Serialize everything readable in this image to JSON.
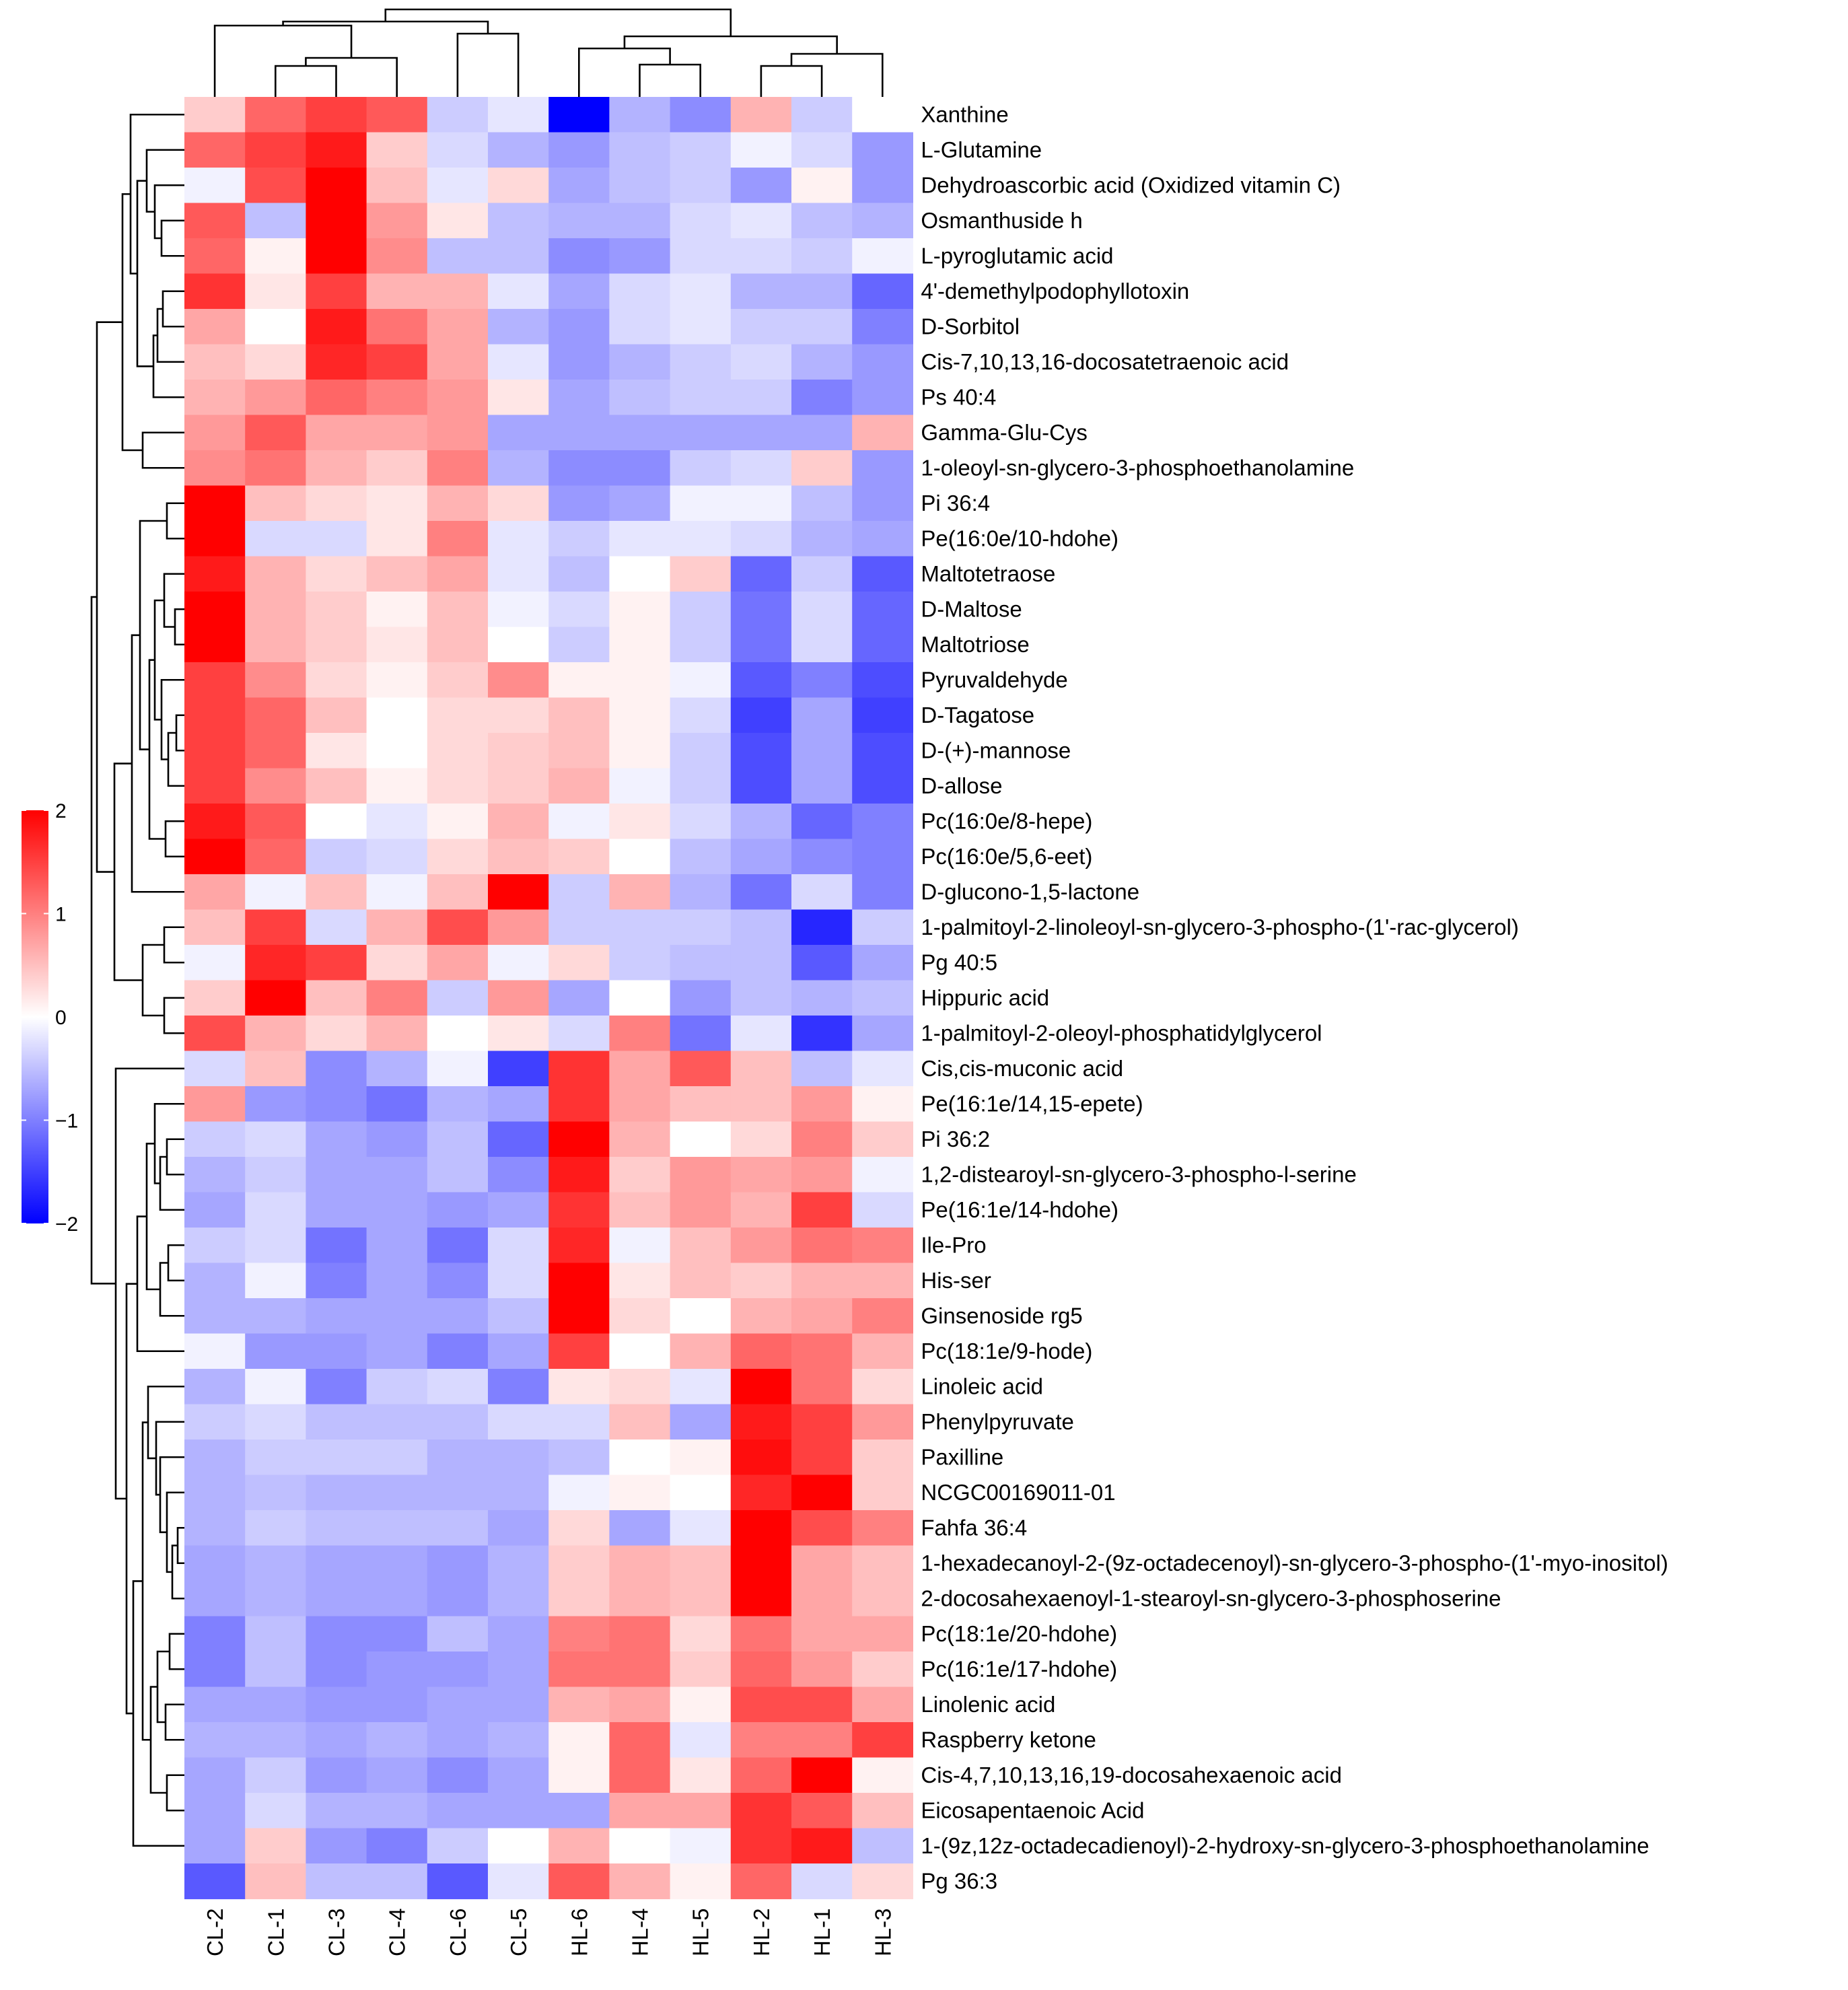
{
  "chart_data": {
    "type": "heatmap",
    "columns": [
      "CL-2",
      "CL-1",
      "CL-3",
      "CL-4",
      "CL-6",
      "CL-5",
      "HL-6",
      "HL-4",
      "HL-5",
      "HL-2",
      "HL-1",
      "HL-3"
    ],
    "rows": [
      {
        "label": "Xanthine",
        "values": [
          0.4,
          1.2,
          1.5,
          1.3,
          -0.4,
          -0.2,
          -2.0,
          -0.6,
          -0.9,
          0.6,
          -0.4,
          0.0
        ]
      },
      {
        "label": "L-Glutamine",
        "values": [
          1.2,
          1.5,
          1.8,
          0.4,
          -0.3,
          -0.6,
          -0.8,
          -0.5,
          -0.4,
          -0.1,
          -0.3,
          -0.8
        ]
      },
      {
        "label": "Dehydroascorbic acid (Oxidized vitamin C)",
        "values": [
          -0.1,
          1.4,
          2.0,
          0.5,
          -0.2,
          0.3,
          -0.7,
          -0.5,
          -0.4,
          -0.8,
          0.1,
          -0.8
        ]
      },
      {
        "label": "Osmanthuside h",
        "values": [
          1.3,
          -0.5,
          2.0,
          0.8,
          0.2,
          -0.5,
          -0.6,
          -0.6,
          -0.3,
          -0.2,
          -0.5,
          -0.6
        ]
      },
      {
        "label": "L-pyroglutamic acid",
        "values": [
          1.2,
          0.1,
          2.0,
          0.9,
          -0.5,
          -0.5,
          -0.9,
          -0.8,
          -0.3,
          -0.3,
          -0.4,
          -0.1
        ]
      },
      {
        "label": "4'-demethylpodophyllotoxin",
        "values": [
          1.6,
          0.2,
          1.5,
          0.6,
          0.6,
          -0.2,
          -0.7,
          -0.3,
          -0.2,
          -0.6,
          -0.6,
          -1.2
        ]
      },
      {
        "label": "D-Sorbitol",
        "values": [
          0.7,
          0.0,
          1.8,
          1.1,
          0.7,
          -0.6,
          -0.8,
          -0.3,
          -0.2,
          -0.4,
          -0.4,
          -1.0
        ]
      },
      {
        "label": "Cis-7,10,13,16-docosatetraenoic acid",
        "values": [
          0.5,
          0.3,
          1.7,
          1.5,
          0.7,
          -0.2,
          -0.8,
          -0.6,
          -0.4,
          -0.3,
          -0.6,
          -0.8
        ]
      },
      {
        "label": "Ps 40:4",
        "values": [
          0.6,
          0.8,
          1.2,
          1.0,
          0.8,
          0.2,
          -0.7,
          -0.5,
          -0.4,
          -0.4,
          -1.0,
          -0.8
        ]
      },
      {
        "label": "Gamma-Glu-Cys",
        "values": [
          0.8,
          1.3,
          0.7,
          0.7,
          0.8,
          -0.7,
          -0.7,
          -0.7,
          -0.7,
          -0.7,
          -0.7,
          0.6
        ]
      },
      {
        "label": "1-oleoyl-sn-glycero-3-phosphoethanolamine",
        "values": [
          0.9,
          1.1,
          0.6,
          0.4,
          1.0,
          -0.6,
          -0.9,
          -0.9,
          -0.4,
          -0.3,
          0.4,
          -0.8
        ]
      },
      {
        "label": "Pi 36:4",
        "values": [
          2.0,
          0.5,
          0.3,
          0.2,
          0.6,
          0.3,
          -0.8,
          -0.7,
          -0.1,
          -0.1,
          -0.5,
          -0.8
        ]
      },
      {
        "label": "Pe(16:0e/10-hdohe)",
        "values": [
          2.0,
          -0.3,
          -0.3,
          0.2,
          1.0,
          -0.2,
          -0.4,
          -0.2,
          -0.2,
          -0.3,
          -0.6,
          -0.7
        ]
      },
      {
        "label": "Maltotetraose",
        "values": [
          1.8,
          0.6,
          0.3,
          0.5,
          0.7,
          -0.2,
          -0.5,
          0.0,
          0.4,
          -1.2,
          -0.4,
          -1.3
        ]
      },
      {
        "label": "D-Maltose",
        "values": [
          2.0,
          0.6,
          0.4,
          0.1,
          0.5,
          -0.1,
          -0.3,
          0.1,
          -0.4,
          -1.1,
          -0.3,
          -1.2
        ]
      },
      {
        "label": "Maltotriose",
        "values": [
          2.0,
          0.6,
          0.4,
          0.2,
          0.5,
          0.0,
          -0.4,
          0.1,
          -0.4,
          -1.1,
          -0.3,
          -1.2
        ]
      },
      {
        "label": "Pyruvaldehyde",
        "values": [
          1.5,
          0.9,
          0.3,
          0.1,
          0.4,
          0.9,
          0.1,
          0.1,
          -0.1,
          -1.3,
          -1.0,
          -1.4
        ]
      },
      {
        "label": "D-Tagatose",
        "values": [
          1.5,
          1.2,
          0.5,
          0.0,
          0.3,
          0.3,
          0.5,
          0.1,
          -0.3,
          -1.5,
          -0.7,
          -1.5
        ]
      },
      {
        "label": "D-(+)-mannose",
        "values": [
          1.5,
          1.2,
          0.2,
          0.0,
          0.3,
          0.4,
          0.5,
          0.1,
          -0.4,
          -1.4,
          -0.7,
          -1.4
        ]
      },
      {
        "label": "D-allose",
        "values": [
          1.5,
          0.9,
          0.5,
          0.1,
          0.3,
          0.4,
          0.6,
          -0.1,
          -0.4,
          -1.4,
          -0.7,
          -1.4
        ]
      },
      {
        "label": "Pc(16:0e/8-hepe)",
        "values": [
          1.8,
          1.3,
          0.0,
          -0.2,
          0.1,
          0.6,
          -0.1,
          0.2,
          -0.3,
          -0.6,
          -1.2,
          -1.0
        ]
      },
      {
        "label": "Pc(16:0e/5,6-eet)",
        "values": [
          2.0,
          1.2,
          -0.4,
          -0.3,
          0.3,
          0.5,
          0.4,
          0.0,
          -0.5,
          -0.7,
          -0.9,
          -1.0
        ]
      },
      {
        "label": "D-glucono-1,5-lactone",
        "values": [
          0.7,
          -0.1,
          0.5,
          -0.1,
          0.5,
          2.0,
          -0.4,
          0.6,
          -0.6,
          -1.1,
          -0.3,
          -1.0
        ]
      },
      {
        "label": "1-palmitoyl-2-linoleoyl-sn-glycero-3-phospho-(1'-rac-glycerol)",
        "values": [
          0.5,
          1.5,
          -0.3,
          0.6,
          1.4,
          0.8,
          -0.4,
          -0.4,
          -0.4,
          -0.5,
          -1.7,
          -0.4
        ]
      },
      {
        "label": "Pg 40:5",
        "values": [
          -0.1,
          1.7,
          1.5,
          0.3,
          0.7,
          -0.1,
          0.3,
          -0.4,
          -0.5,
          -0.5,
          -1.3,
          -0.7
        ]
      },
      {
        "label": "Hippuric acid",
        "values": [
          0.4,
          2.0,
          0.5,
          1.0,
          -0.4,
          0.8,
          -0.7,
          0.0,
          -0.8,
          -0.5,
          -0.6,
          -0.5
        ]
      },
      {
        "label": "1-palmitoyl-2-oleoyl-phosphatidylglycerol",
        "values": [
          1.4,
          0.6,
          0.3,
          0.6,
          0.0,
          0.2,
          -0.3,
          1.0,
          -1.1,
          -0.2,
          -1.6,
          -0.7
        ]
      },
      {
        "label": "Cis,cis-muconic acid",
        "values": [
          -0.3,
          0.5,
          -0.9,
          -0.6,
          -0.1,
          -1.5,
          1.6,
          0.7,
          1.3,
          0.5,
          -0.5,
          -0.2
        ]
      },
      {
        "label": "Pe(16:1e/14,15-epete)",
        "values": [
          0.8,
          -0.8,
          -0.9,
          -1.1,
          -0.6,
          -0.7,
          1.6,
          0.7,
          0.5,
          0.5,
          0.8,
          0.1
        ]
      },
      {
        "label": "Pi 36:2",
        "values": [
          -0.4,
          -0.3,
          -0.7,
          -0.8,
          -0.5,
          -1.2,
          2.0,
          0.6,
          0.0,
          0.3,
          1.0,
          0.4
        ]
      },
      {
        "label": "1,2-distearoyl-sn-glycero-3-phospho-l-serine",
        "values": [
          -0.6,
          -0.4,
          -0.7,
          -0.7,
          -0.5,
          -0.9,
          1.8,
          0.4,
          0.8,
          0.7,
          0.8,
          -0.1
        ]
      },
      {
        "label": "Pe(16:1e/14-hdohe)",
        "values": [
          -0.7,
          -0.3,
          -0.7,
          -0.7,
          -0.8,
          -0.7,
          1.6,
          0.5,
          0.8,
          0.6,
          1.5,
          -0.3
        ]
      },
      {
        "label": "Ile-Pro",
        "values": [
          -0.4,
          -0.3,
          -1.1,
          -0.7,
          -1.1,
          -0.3,
          1.7,
          -0.1,
          0.5,
          0.8,
          1.1,
          1.0
        ]
      },
      {
        "label": "His-ser",
        "values": [
          -0.6,
          -0.1,
          -1.0,
          -0.7,
          -0.9,
          -0.3,
          2.0,
          0.2,
          0.5,
          0.4,
          0.6,
          0.6
        ]
      },
      {
        "label": "Ginsenoside rg5",
        "values": [
          -0.6,
          -0.6,
          -0.7,
          -0.7,
          -0.7,
          -0.5,
          2.0,
          0.3,
          0.0,
          0.6,
          0.7,
          1.0
        ]
      },
      {
        "label": "Pc(18:1e/9-hode)",
        "values": [
          -0.1,
          -0.8,
          -0.8,
          -0.7,
          -1.0,
          -0.7,
          1.5,
          0.0,
          0.6,
          1.2,
          1.1,
          0.6
        ]
      },
      {
        "label": "Linoleic acid",
        "values": [
          -0.6,
          -0.1,
          -1.0,
          -0.4,
          -0.3,
          -1.0,
          0.2,
          0.3,
          -0.2,
          2.0,
          1.1,
          0.3
        ]
      },
      {
        "label": "Phenylpyruvate",
        "values": [
          -0.4,
          -0.3,
          -0.5,
          -0.5,
          -0.5,
          -0.3,
          -0.3,
          0.5,
          -0.7,
          1.8,
          1.5,
          0.8
        ]
      },
      {
        "label": "Paxilline",
        "values": [
          -0.6,
          -0.4,
          -0.4,
          -0.4,
          -0.6,
          -0.6,
          -0.5,
          0.0,
          0.1,
          1.9,
          1.5,
          0.4
        ]
      },
      {
        "label": "NCGC00169011-01",
        "values": [
          -0.6,
          -0.5,
          -0.6,
          -0.6,
          -0.6,
          -0.6,
          -0.1,
          0.1,
          0.0,
          1.7,
          2.0,
          0.4
        ]
      },
      {
        "label": "Fahfa 36:4",
        "values": [
          -0.6,
          -0.4,
          -0.5,
          -0.5,
          -0.5,
          -0.7,
          0.3,
          -0.7,
          -0.2,
          2.0,
          1.4,
          1.0
        ]
      },
      {
        "label": "1-hexadecanoyl-2-(9z-octadecenoyl)-sn-glycero-3-phospho-(1'-myo-inositol)",
        "values": [
          -0.7,
          -0.6,
          -0.7,
          -0.7,
          -0.8,
          -0.6,
          0.4,
          0.6,
          0.5,
          2.0,
          0.7,
          0.5
        ]
      },
      {
        "label": "2-docosahexaenoyl-1-stearoyl-sn-glycero-3-phosphoserine",
        "values": [
          -0.7,
          -0.6,
          -0.7,
          -0.7,
          -0.8,
          -0.6,
          0.4,
          0.6,
          0.5,
          2.0,
          0.7,
          0.5
        ]
      },
      {
        "label": "Pc(18:1e/20-hdohe)",
        "values": [
          -1.0,
          -0.5,
          -0.9,
          -0.9,
          -0.5,
          -0.7,
          1.0,
          1.1,
          0.3,
          1.1,
          0.7,
          0.7
        ]
      },
      {
        "label": "Pc(16:1e/17-hdohe)",
        "values": [
          -1.0,
          -0.5,
          -0.9,
          -0.8,
          -0.8,
          -0.7,
          1.1,
          1.1,
          0.4,
          1.2,
          0.8,
          0.4
        ]
      },
      {
        "label": "Linolenic acid",
        "values": [
          -0.7,
          -0.7,
          -0.8,
          -0.8,
          -0.7,
          -0.7,
          0.6,
          0.7,
          0.1,
          1.4,
          1.4,
          0.7
        ]
      },
      {
        "label": "Raspberry ketone",
        "values": [
          -0.6,
          -0.6,
          -0.7,
          -0.6,
          -0.7,
          -0.6,
          0.1,
          1.2,
          -0.2,
          1.0,
          1.0,
          1.5
        ]
      },
      {
        "label": "Cis-4,7,10,13,16,19-docosahexaenoic acid",
        "values": [
          -0.7,
          -0.4,
          -0.8,
          -0.7,
          -0.9,
          -0.7,
          0.1,
          1.2,
          0.2,
          1.2,
          2.0,
          0.1
        ]
      },
      {
        "label": "Eicosapentaenoic Acid",
        "values": [
          -0.7,
          -0.3,
          -0.6,
          -0.6,
          -0.7,
          -0.7,
          -0.7,
          0.7,
          0.7,
          1.6,
          1.3,
          0.5
        ]
      },
      {
        "label": "1-(9z,12z-octadecadienoyl)-2-hydroxy-sn-glycero-3-phosphoethanolamine",
        "values": [
          -0.7,
          0.4,
          -0.8,
          -1.0,
          -0.4,
          0.0,
          0.6,
          0.0,
          -0.1,
          1.6,
          1.8,
          -0.5
        ]
      },
      {
        "label": "Pg 36:3",
        "values": [
          -1.3,
          0.5,
          -0.5,
          -0.5,
          -1.3,
          -0.2,
          1.3,
          0.6,
          0.1,
          1.2,
          -0.3,
          0.3
        ]
      }
    ],
    "colorbar": {
      "ticks": [
        2,
        1,
        0,
        -1,
        -2
      ],
      "labels": [
        "2",
        "1",
        "0",
        "−1",
        "−2"
      ],
      "min": -2,
      "max": 2
    },
    "colors": {
      "low": "#0000ff",
      "mid": "#ffffff",
      "high": "#ff0000"
    },
    "legend_position": "left",
    "grid": false,
    "dendrograms": [
      "top",
      "left"
    ],
    "title": "",
    "xlabel": "",
    "ylabel": ""
  }
}
